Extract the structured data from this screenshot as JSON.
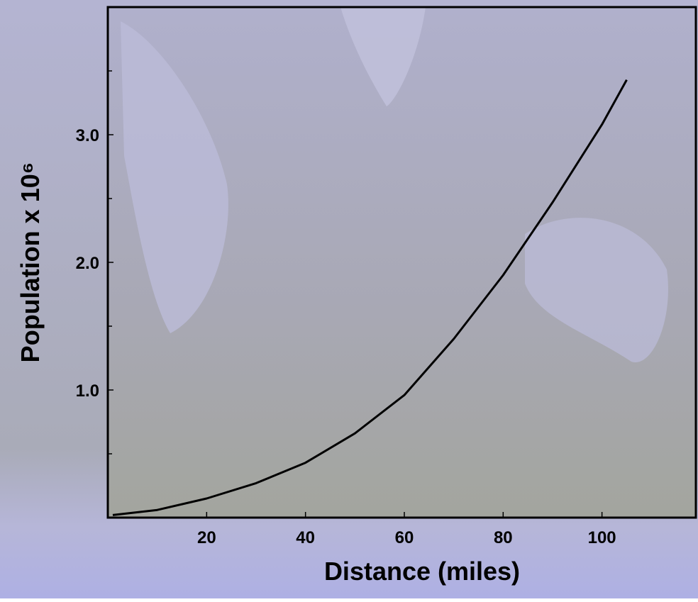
{
  "chart_data": {
    "type": "line",
    "x_label": "Distance (miles)",
    "y_label": "Population x 10⁶",
    "x": [
      1,
      10,
      20,
      30,
      40,
      50,
      60,
      70,
      80,
      90,
      100,
      105
    ],
    "series": [
      {
        "color": "#000000",
        "values": [
          0.02,
          0.06,
          0.15,
          0.27,
          0.43,
          0.66,
          0.96,
          1.4,
          1.9,
          2.47,
          3.08,
          3.43
        ]
      }
    ],
    "xlim": [
      0,
      119
    ],
    "ylim": [
      0,
      4.0
    ],
    "xticks": [
      20,
      40,
      60,
      80,
      100
    ],
    "yticks": [
      {
        "value": 1,
        "label": "1.0"
      },
      {
        "value": 2,
        "label": "2.0"
      },
      {
        "value": 3,
        "label": "3.0"
      }
    ],
    "yminor": [
      0.5,
      1.5,
      2.5,
      3.5
    ],
    "grid": false
  }
}
